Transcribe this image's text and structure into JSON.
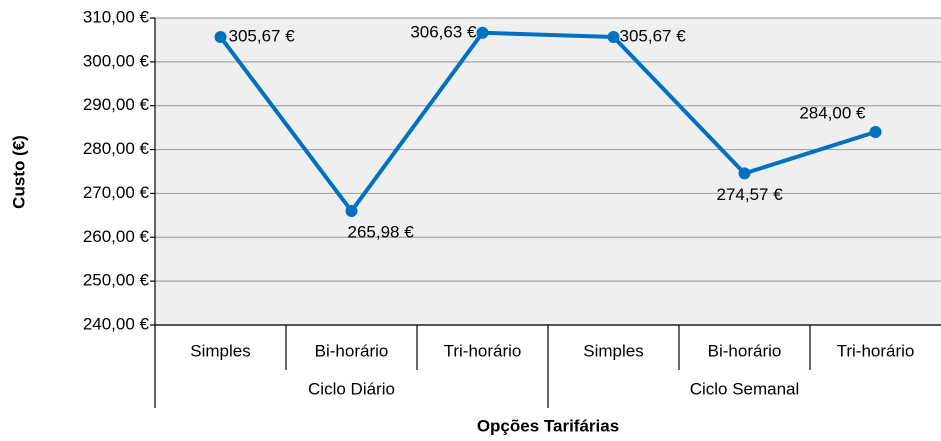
{
  "chart_data": {
    "type": "line",
    "y_label": "Custo (€)",
    "x_label": "Opções Tarifárias",
    "groups": [
      {
        "label": "Ciclo Diário",
        "categories": [
          "Simples",
          "Bi-horário",
          "Tri-horário"
        ],
        "values": [
          305.67,
          265.98,
          306.63
        ],
        "value_labels": [
          "305,67 €",
          "265,98 €",
          "306,63 €"
        ]
      },
      {
        "label": "Ciclo Semanal",
        "categories": [
          "Simples",
          "Bi-horário",
          "Tri-horário"
        ],
        "values": [
          305.67,
          274.57,
          284.0
        ],
        "value_labels": [
          "305,67 €",
          "274,57 €",
          "284,00 €"
        ]
      }
    ],
    "color": "#0070c0",
    "ylim": [
      240,
      310
    ],
    "yticks": [
      {
        "value": 240,
        "label": "240,00 €"
      },
      {
        "value": 250,
        "label": "250,00 €"
      },
      {
        "value": 260,
        "label": "260,00 €"
      },
      {
        "value": 270,
        "label": "270,00 €"
      },
      {
        "value": 280,
        "label": "280,00 €"
      },
      {
        "value": 290,
        "label": "290,00 €"
      },
      {
        "value": 300,
        "label": "300,00 €"
      },
      {
        "value": 310,
        "label": "310,00 €"
      }
    ],
    "grid": true
  }
}
